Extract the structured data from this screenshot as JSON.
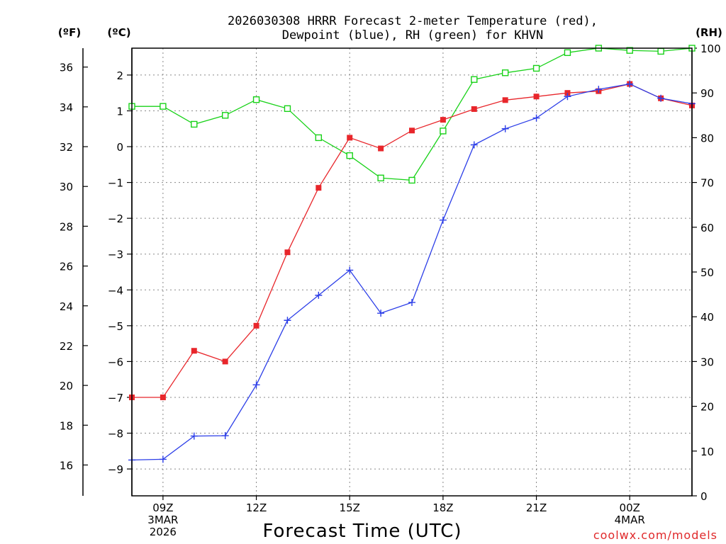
{
  "chart_data": {
    "type": "line",
    "title_line1": "2026030308 HRRR Forecast 2-meter Temperature (red),",
    "title_line2": "Dewpoint (blue), RH (green) for KHVN",
    "xlabel": "Forecast Time (UTC)",
    "credit": "coolwx.com/models",
    "colors": {
      "temperature": "#e8262b",
      "dewpoint": "#2c3ee8",
      "rh": "#19d219",
      "credit": "#e0282a"
    },
    "left_axis_label_f": "(ºF)",
    "left_axis_label_c": "(ºC)",
    "right_axis_label": "(RH)",
    "x_hours": [
      8,
      9,
      10,
      11,
      12,
      13,
      14,
      15,
      16,
      17,
      18,
      19,
      20,
      21,
      22,
      23,
      24,
      25,
      26
    ],
    "x_range": [
      8,
      26
    ],
    "x_ticks": [
      {
        "hour": 9,
        "line1": "09Z",
        "line2": "3MAR",
        "line3": "2026"
      },
      {
        "hour": 12,
        "line1": "12Z",
        "line2": "",
        "line3": ""
      },
      {
        "hour": 15,
        "line1": "15Z",
        "line2": "",
        "line3": ""
      },
      {
        "hour": 18,
        "line1": "18Z",
        "line2": "",
        "line3": ""
      },
      {
        "hour": 21,
        "line1": "21Z",
        "line2": "",
        "line3": ""
      },
      {
        "hour": 24,
        "line1": "00Z",
        "line2": "4MAR",
        "line3": ""
      }
    ],
    "celsius_range": [
      -9.75,
      2.75
    ],
    "celsius_ticks": [
      "-9",
      "-8",
      "-7",
      "-6",
      "-5",
      "-4",
      "-3",
      "-2",
      "-1",
      "0",
      "1",
      "2"
    ],
    "fahrenheit_ticks": [
      "16",
      "18",
      "20",
      "22",
      "24",
      "26",
      "28",
      "30",
      "32",
      "34",
      "36"
    ],
    "rh_range": [
      0,
      100
    ],
    "rh_ticks": [
      "0",
      "10",
      "20",
      "30",
      "40",
      "50",
      "60",
      "70",
      "80",
      "90",
      "100"
    ],
    "series": [
      {
        "name": "Temperature (C)",
        "key": "temperature",
        "marker": "filled-square",
        "values": [
          -7.0,
          -7.0,
          -5.7,
          -6.0,
          -5.0,
          -2.95,
          -1.15,
          0.25,
          -0.05,
          0.45,
          0.75,
          1.05,
          1.3,
          1.4,
          1.5,
          1.55,
          1.75,
          1.35,
          1.15
        ]
      },
      {
        "name": "Dewpoint (C)",
        "key": "dewpoint",
        "marker": "plus",
        "values": [
          -8.75,
          -8.73,
          -8.08,
          -8.07,
          -6.65,
          -4.85,
          -4.15,
          -3.45,
          -4.65,
          -4.35,
          -2.05,
          0.05,
          0.5,
          0.8,
          1.4,
          1.6,
          1.75,
          1.35,
          1.2
        ]
      },
      {
        "name": "RH (%)",
        "key": "rh",
        "marker": "open-square",
        "values": [
          87,
          87,
          83,
          85,
          88.5,
          86.5,
          80,
          76,
          71,
          70.5,
          81.5,
          93,
          94.5,
          95.5,
          99,
          100,
          99.5,
          99.3,
          100
        ]
      }
    ]
  }
}
